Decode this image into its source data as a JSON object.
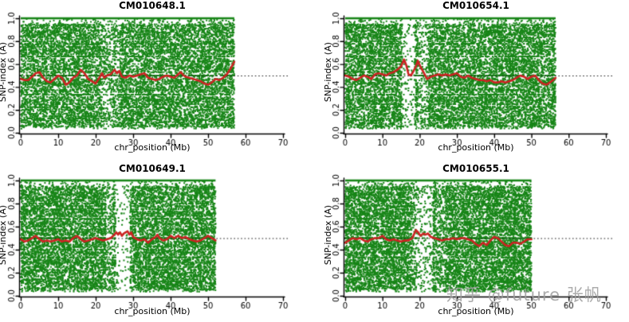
{
  "watermark": {
    "text": "知乎 @future 张帆",
    "color": "#9e9e9e"
  },
  "chart_data": [
    {
      "type": "scatter",
      "title": "CM010648.1",
      "xlabel": "chr_position (Mb)",
      "ylabel": "SNP-index (A)",
      "xlim": [
        0,
        70
      ],
      "ylim": [
        0.0,
        1.0
      ],
      "xtick_labels": [
        "0",
        "10",
        "20",
        "30",
        "40",
        "50",
        "60",
        "70"
      ],
      "ytick_labels": [
        "0.0",
        "0.2",
        "0.4",
        "0.6",
        "0.8",
        "1.0"
      ],
      "grid": false,
      "point_color": "#178517",
      "trend_color": "#cc2222",
      "threshold_color": "#1b1b1b",
      "threshold_y": 0.5,
      "data_extent_mb": 57,
      "n_points": 12000,
      "seed": 11,
      "top_band_y": 1.0,
      "sparse_regions": [
        [
          21.5,
          26.5,
          0.55
        ],
        [
          7.2,
          7.8,
          0.6
        ],
        [
          30.1,
          30.8,
          0.65
        ]
      ],
      "trend_line": [
        [
          0,
          0.47
        ],
        [
          1,
          0.46
        ],
        [
          2,
          0.46
        ],
        [
          3,
          0.49
        ],
        [
          4,
          0.52
        ],
        [
          5,
          0.53
        ],
        [
          6,
          0.48
        ],
        [
          7,
          0.45
        ],
        [
          8,
          0.44
        ],
        [
          9,
          0.47
        ],
        [
          10,
          0.5
        ],
        [
          11,
          0.48
        ],
        [
          12,
          0.42
        ],
        [
          13,
          0.44
        ],
        [
          14,
          0.48
        ],
        [
          15,
          0.5
        ],
        [
          16,
          0.55
        ],
        [
          17,
          0.52
        ],
        [
          18,
          0.47
        ],
        [
          19,
          0.45
        ],
        [
          20,
          0.43
        ],
        [
          21,
          0.48
        ],
        [
          21.7,
          0.52
        ],
        [
          22.3,
          0.48
        ],
        [
          23,
          0.5
        ],
        [
          24,
          0.51
        ],
        [
          25,
          0.55
        ],
        [
          25.7,
          0.52
        ],
        [
          26.3,
          0.54
        ],
        [
          27,
          0.49
        ],
        [
          28,
          0.48
        ],
        [
          29,
          0.5
        ],
        [
          30,
          0.49
        ],
        [
          31,
          0.5
        ],
        [
          32,
          0.51
        ],
        [
          33,
          0.52
        ],
        [
          34,
          0.48
        ],
        [
          35,
          0.47
        ],
        [
          36,
          0.46
        ],
        [
          37,
          0.47
        ],
        [
          38,
          0.49
        ],
        [
          39,
          0.5
        ],
        [
          40,
          0.49
        ],
        [
          41,
          0.48
        ],
        [
          42,
          0.51
        ],
        [
          42.7,
          0.53
        ],
        [
          43.5,
          0.5
        ],
        [
          44,
          0.49
        ],
        [
          45,
          0.48
        ],
        [
          46,
          0.47
        ],
        [
          47,
          0.46
        ],
        [
          48,
          0.45
        ],
        [
          49,
          0.43
        ],
        [
          50,
          0.42
        ],
        [
          51,
          0.44
        ],
        [
          52,
          0.47
        ],
        [
          53,
          0.46
        ],
        [
          54,
          0.48
        ],
        [
          55,
          0.51
        ],
        [
          56,
          0.56
        ],
        [
          57,
          0.62
        ]
      ]
    },
    {
      "type": "scatter",
      "title": "CM010654.1",
      "xlabel": "chr_position (Mb)",
      "ylabel": "SNP-index (A)",
      "xlim": [
        0,
        70
      ],
      "ylim": [
        0.0,
        1.0
      ],
      "xtick_labels": [
        "0",
        "10",
        "20",
        "30",
        "40",
        "50",
        "60",
        "70"
      ],
      "ytick_labels": [
        "0.0",
        "0.2",
        "0.4",
        "0.6",
        "0.8",
        "1.0"
      ],
      "grid": false,
      "point_color": "#178517",
      "trend_color": "#cc2222",
      "threshold_color": "#1b1b1b",
      "threshold_y": 0.5,
      "data_extent_mb": 56.5,
      "n_points": 12000,
      "seed": 22,
      "top_band_y": 1.0,
      "sparse_regions": [
        [
          15.3,
          18.7,
          0.15
        ],
        [
          19.6,
          22.3,
          0.45
        ],
        [
          5.2,
          6.0,
          0.55
        ]
      ],
      "trend_line": [
        [
          0,
          0.5
        ],
        [
          1,
          0.49
        ],
        [
          2,
          0.47
        ],
        [
          3,
          0.46
        ],
        [
          4,
          0.48
        ],
        [
          5,
          0.5
        ],
        [
          6,
          0.49
        ],
        [
          7,
          0.47
        ],
        [
          8,
          0.51
        ],
        [
          9,
          0.52
        ],
        [
          10,
          0.51
        ],
        [
          11,
          0.5
        ],
        [
          12,
          0.52
        ],
        [
          13,
          0.53
        ],
        [
          14,
          0.55
        ],
        [
          15,
          0.58
        ],
        [
          15.8,
          0.64
        ],
        [
          16.4,
          0.59
        ],
        [
          17,
          0.51
        ],
        [
          17.6,
          0.5
        ],
        [
          18.2,
          0.53
        ],
        [
          19,
          0.58
        ],
        [
          19.5,
          0.63
        ],
        [
          20,
          0.59
        ],
        [
          21,
          0.53
        ],
        [
          22,
          0.47
        ],
        [
          23,
          0.49
        ],
        [
          24,
          0.5
        ],
        [
          25,
          0.51
        ],
        [
          26,
          0.5
        ],
        [
          27,
          0.51
        ],
        [
          28,
          0.5
        ],
        [
          29,
          0.51
        ],
        [
          30,
          0.52
        ],
        [
          31,
          0.49
        ],
        [
          32,
          0.48
        ],
        [
          33,
          0.5
        ],
        [
          34,
          0.48
        ],
        [
          35,
          0.47
        ],
        [
          36,
          0.46
        ],
        [
          37,
          0.46
        ],
        [
          38,
          0.45
        ],
        [
          39,
          0.46
        ],
        [
          40,
          0.44
        ],
        [
          41,
          0.44
        ],
        [
          42,
          0.45
        ],
        [
          43,
          0.44
        ],
        [
          44,
          0.45
        ],
        [
          45,
          0.46
        ],
        [
          46,
          0.48
        ],
        [
          47,
          0.5
        ],
        [
          48,
          0.49
        ],
        [
          49,
          0.47
        ],
        [
          50,
          0.49
        ],
        [
          51,
          0.5
        ],
        [
          52,
          0.46
        ],
        [
          53,
          0.43
        ],
        [
          54,
          0.42
        ],
        [
          55,
          0.44
        ],
        [
          56.5,
          0.48
        ]
      ]
    },
    {
      "type": "scatter",
      "title": "CM010649.1",
      "xlabel": "chr_position (Mb)",
      "ylabel": "SNP-index (A)",
      "xlim": [
        0,
        70
      ],
      "ylim": [
        0.0,
        1.0
      ],
      "xtick_labels": [
        "0",
        "10",
        "20",
        "30",
        "40",
        "50",
        "60",
        "70"
      ],
      "ytick_labels": [
        "0.0",
        "0.2",
        "0.4",
        "0.6",
        "0.8",
        "1.0"
      ],
      "grid": false,
      "point_color": "#178517",
      "trend_color": "#cc2222",
      "threshold_color": "#1b1b1b",
      "threshold_y": 0.5,
      "data_extent_mb": 52,
      "n_points": 12000,
      "seed": 33,
      "top_band_y": 1.0,
      "sparse_regions": [
        [
          25.3,
          29.2,
          0.12
        ],
        [
          22.6,
          24.6,
          0.55
        ]
      ],
      "trend_line": [
        [
          0,
          0.49
        ],
        [
          1,
          0.47
        ],
        [
          2,
          0.48
        ],
        [
          3,
          0.5
        ],
        [
          4,
          0.52
        ],
        [
          5,
          0.49
        ],
        [
          6,
          0.47
        ],
        [
          7,
          0.48
        ],
        [
          8,
          0.47
        ],
        [
          9,
          0.48
        ],
        [
          10,
          0.49
        ],
        [
          11,
          0.47
        ],
        [
          12,
          0.48
        ],
        [
          13,
          0.47
        ],
        [
          14,
          0.5
        ],
        [
          15,
          0.52
        ],
        [
          16,
          0.49
        ],
        [
          17,
          0.47
        ],
        [
          18,
          0.48
        ],
        [
          19,
          0.49
        ],
        [
          20,
          0.5
        ],
        [
          21,
          0.49
        ],
        [
          22,
          0.48
        ],
        [
          23,
          0.49
        ],
        [
          24,
          0.5
        ],
        [
          25,
          0.53
        ],
        [
          25.5,
          0.55
        ],
        [
          26,
          0.53
        ],
        [
          26.5,
          0.55
        ],
        [
          27,
          0.52
        ],
        [
          27.5,
          0.54
        ],
        [
          28,
          0.55
        ],
        [
          28.5,
          0.56
        ],
        [
          29,
          0.53
        ],
        [
          29.5,
          0.55
        ],
        [
          30,
          0.51
        ],
        [
          31,
          0.49
        ],
        [
          32,
          0.48
        ],
        [
          33,
          0.49
        ],
        [
          34,
          0.46
        ],
        [
          35,
          0.49
        ],
        [
          36,
          0.51
        ],
        [
          36.5,
          0.53
        ],
        [
          37,
          0.5
        ],
        [
          38,
          0.48
        ],
        [
          39,
          0.49
        ],
        [
          40,
          0.52
        ],
        [
          41,
          0.5
        ],
        [
          42,
          0.52
        ],
        [
          43,
          0.5
        ],
        [
          44,
          0.51
        ],
        [
          45,
          0.49
        ],
        [
          46,
          0.48
        ],
        [
          47,
          0.47
        ],
        [
          48,
          0.48
        ],
        [
          49,
          0.5
        ],
        [
          50,
          0.52
        ],
        [
          51,
          0.5
        ],
        [
          52,
          0.48
        ]
      ]
    },
    {
      "type": "scatter",
      "title": "CM010655.1",
      "xlabel": "chr_position (Mb)",
      "ylabel": "SNP-index (A)",
      "xlim": [
        0,
        70
      ],
      "ylim": [
        0.0,
        1.0
      ],
      "xtick_labels": [
        "0",
        "10",
        "20",
        "30",
        "40",
        "50",
        "60",
        "70"
      ],
      "ytick_labels": [
        "0.0",
        "0.2",
        "0.4",
        "0.6",
        "0.8",
        "1.0"
      ],
      "grid": false,
      "point_color": "#178517",
      "trend_color": "#cc2222",
      "threshold_color": "#1b1b1b",
      "threshold_y": 0.5,
      "data_extent_mb": 50,
      "n_points": 12000,
      "seed": 44,
      "top_band_y": 1.0,
      "sparse_regions": [
        [
          19.2,
          23.6,
          0.22
        ],
        [
          24.5,
          27.0,
          0.6
        ],
        [
          17.8,
          19.2,
          0.5
        ]
      ],
      "trend_line": [
        [
          0,
          0.46
        ],
        [
          1,
          0.48
        ],
        [
          2,
          0.5
        ],
        [
          3,
          0.49
        ],
        [
          4,
          0.5
        ],
        [
          5,
          0.48
        ],
        [
          6,
          0.47
        ],
        [
          7,
          0.49
        ],
        [
          8,
          0.5
        ],
        [
          9,
          0.5
        ],
        [
          10,
          0.52
        ],
        [
          11,
          0.49
        ],
        [
          12,
          0.48
        ],
        [
          13,
          0.49
        ],
        [
          14,
          0.48
        ],
        [
          15,
          0.47
        ],
        [
          16,
          0.48
        ],
        [
          17,
          0.48
        ],
        [
          18,
          0.5
        ],
        [
          19,
          0.57
        ],
        [
          19.6,
          0.55
        ],
        [
          20.2,
          0.52
        ],
        [
          21,
          0.54
        ],
        [
          21.6,
          0.53
        ],
        [
          22.2,
          0.54
        ],
        [
          23,
          0.51
        ],
        [
          24,
          0.5
        ],
        [
          25,
          0.49
        ],
        [
          26,
          0.48
        ],
        [
          27,
          0.49
        ],
        [
          28,
          0.49
        ],
        [
          29,
          0.5
        ],
        [
          30,
          0.49
        ],
        [
          31,
          0.5
        ],
        [
          32,
          0.5
        ],
        [
          33,
          0.49
        ],
        [
          34,
          0.48
        ],
        [
          35,
          0.45
        ],
        [
          36,
          0.43
        ],
        [
          37,
          0.46
        ],
        [
          38,
          0.44
        ],
        [
          39,
          0.48
        ],
        [
          40,
          0.51
        ],
        [
          41,
          0.5
        ],
        [
          42,
          0.47
        ],
        [
          43,
          0.44
        ],
        [
          44,
          0.43
        ],
        [
          45,
          0.46
        ],
        [
          46,
          0.46
        ],
        [
          47,
          0.45
        ],
        [
          48,
          0.47
        ],
        [
          49,
          0.49
        ],
        [
          50,
          0.49
        ]
      ]
    }
  ]
}
